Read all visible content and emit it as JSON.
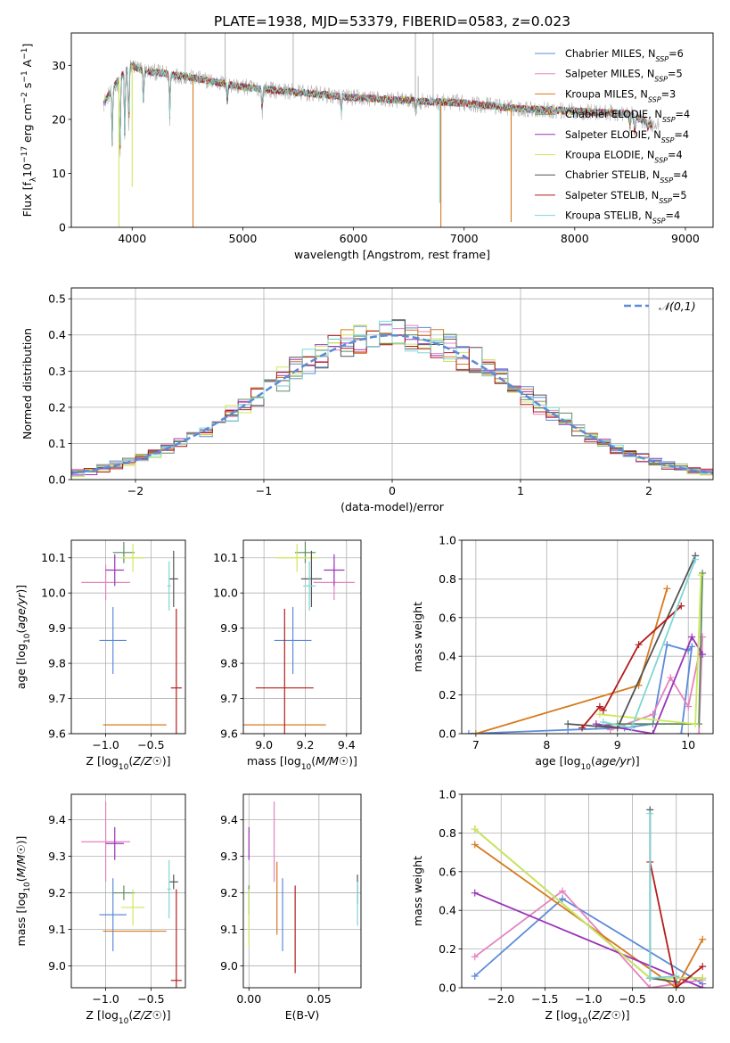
{
  "title": "PLATE=1938, MJD=53379, FIBERID=0583, z=0.023",
  "colors": {
    "Chabrier MILES": "#5b8bd9",
    "Salpeter MILES": "#e583c0",
    "Kroupa MILES": "#d67a1e",
    "Chabrier ELODIE": "#5e8a5e",
    "Salpeter ELODIE": "#9a34b8",
    "Kroupa ELODIE": "#cde85a",
    "Chabrier STELIB": "#555555",
    "Salpeter STELIB": "#b51c1c",
    "Kroupa STELIB": "#7fd6d6",
    "data": "#b3b3b3",
    "normal": "#5b8bd9"
  },
  "legend": [
    {
      "prefix": "Chabrier MILES, N",
      "sub": "SSP",
      "suffix": "=6",
      "key": "Chabrier MILES"
    },
    {
      "prefix": "Salpeter MILES, N",
      "sub": "SSP",
      "suffix": "=5",
      "key": "Salpeter MILES"
    },
    {
      "prefix": "Kroupa MILES, N",
      "sub": "SSP",
      "suffix": "=3",
      "key": "Kroupa MILES"
    },
    {
      "prefix": "Chabrier ELODIE, N",
      "sub": "SSP",
      "suffix": "=4",
      "key": "Chabrier ELODIE"
    },
    {
      "prefix": "Salpeter ELODIE, N",
      "sub": "SSP",
      "suffix": "=4",
      "key": "Salpeter ELODIE"
    },
    {
      "prefix": "Kroupa ELODIE, N",
      "sub": "SSP",
      "suffix": "=4",
      "key": "Kroupa ELODIE"
    },
    {
      "prefix": "Chabrier STELIB, N",
      "sub": "SSP",
      "suffix": "=4",
      "key": "Chabrier STELIB"
    },
    {
      "prefix": "Salpeter STELIB, N",
      "sub": "SSP",
      "suffix": "=5",
      "key": "Salpeter STELIB"
    },
    {
      "prefix": "Kroupa STELIB, N",
      "sub": "SSP",
      "suffix": "=4",
      "key": "Kroupa STELIB"
    }
  ],
  "chart_data": [
    {
      "type": "line",
      "title": "PLATE=1938, MJD=53379, FIBERID=0583, z=0.023",
      "xlabel": "wavelength [Angstrom, rest frame]",
      "ylabel": "Flux [f_λ 10^-17 erg cm^-2 s^-1 A^-1]",
      "xlim": [
        3450,
        9250
      ],
      "ylim": [
        0,
        36
      ],
      "xticks": [
        4000,
        5000,
        6000,
        7000,
        8000,
        9000
      ],
      "yticks": [
        0,
        10,
        20,
        30
      ],
      "continuum": {
        "x": [
          3740,
          3900,
          4000,
          4100,
          4300,
          4600,
          5000,
          5500,
          6000,
          6500,
          7000,
          7500,
          8000,
          8500,
          8700
        ],
        "y": [
          23,
          28,
          30,
          29,
          28.5,
          27.5,
          26,
          25,
          24,
          23.5,
          23,
          22,
          21.5,
          21,
          19
        ]
      },
      "absorption_lines": [
        {
          "x": 3820,
          "y": 14
        },
        {
          "x": 3890,
          "y": 12
        },
        {
          "x": 3934,
          "y": 15
        },
        {
          "x": 3969,
          "y": 17
        },
        {
          "x": 4102,
          "y": 22
        },
        {
          "x": 4340,
          "y": 20
        },
        {
          "x": 4861,
          "y": 23
        },
        {
          "x": 5175,
          "y": 21
        },
        {
          "x": 5890,
          "y": 21
        },
        {
          "x": 6563,
          "y": 21
        },
        {
          "x": 8498,
          "y": 18
        },
        {
          "x": 8542,
          "y": 17
        },
        {
          "x": 8662,
          "y": 18
        }
      ],
      "spikes": [
        {
          "x": 3880,
          "y": 0,
          "series": "Kroupa ELODIE"
        },
        {
          "x": 4550,
          "y": 0,
          "series": "Kroupa MILES"
        },
        {
          "x": 6790,
          "y": 0,
          "series": "Kroupa MILES"
        },
        {
          "x": 7425,
          "y": 1,
          "series": "Kroupa MILES"
        },
        {
          "x": 6780,
          "y": 4.5,
          "series": "Kroupa STELIB"
        },
        {
          "x": 4000,
          "y": 7.5,
          "series": "Kroupa ELODIE"
        }
      ],
      "emission_lines": [
        {
          "x": 4480,
          "y": 36
        },
        {
          "x": 4840,
          "y": 36
        },
        {
          "x": 5455,
          "y": 36
        },
        {
          "x": 6560,
          "y": 36
        },
        {
          "x": 6585,
          "y": 28
        },
        {
          "x": 6720,
          "y": 36
        }
      ]
    },
    {
      "type": "area",
      "xlabel": "(data-model)/error",
      "ylabel": "Normed distribution",
      "xlim": [
        -2.5,
        2.5
      ],
      "ylim": [
        0,
        0.53
      ],
      "xticks": [
        -2,
        -1,
        0,
        1,
        2
      ],
      "yticks": [
        0.0,
        0.1,
        0.2,
        0.3,
        0.4,
        0.5
      ],
      "legend_location": "upper right",
      "gaussian": {
        "name": "𝒩(0,1)",
        "mu": 0,
        "sigma": 1
      },
      "bin_width": 0.1
    },
    {
      "type": "scatter",
      "xlabel": "Z [log10(Z/Z☉)]",
      "ylabel": "age  [log10(age/yr)]",
      "xlim": [
        -1.38,
        -0.12
      ],
      "ylim": [
        9.6,
        10.15
      ],
      "xticks": [
        -1.0,
        -0.5
      ],
      "yticks": [
        9.6,
        9.7,
        9.8,
        9.9,
        10.0,
        10.1
      ],
      "points": [
        {
          "series": "Chabrier MILES",
          "x": -0.92,
          "y": 9.865,
          "xerr": 0.15,
          "yerr": 0.095
        },
        {
          "series": "Salpeter MILES",
          "x": -1.0,
          "y": 10.03,
          "xerr": 0.27,
          "yerr": 0.05
        },
        {
          "series": "Kroupa MILES",
          "x": -0.68,
          "y": 9.625,
          "xerr": 0.35,
          "yerr": 0.0
        },
        {
          "series": "Chabrier ELODIE",
          "x": -0.8,
          "y": 10.115,
          "xerr": 0.12,
          "yerr": 0.03
        },
        {
          "series": "Salpeter ELODIE",
          "x": -0.9,
          "y": 10.065,
          "xerr": 0.1,
          "yerr": 0.045
        },
        {
          "series": "Kroupa ELODIE",
          "x": -0.7,
          "y": 10.1,
          "xerr": 0.13,
          "yerr": 0.04
        },
        {
          "series": "Chabrier STELIB",
          "x": -0.25,
          "y": 10.04,
          "xerr": 0.05,
          "yerr": 0.08
        },
        {
          "series": "Salpeter STELIB",
          "x": -0.22,
          "y": 9.73,
          "xerr": 0.06,
          "yerr": 0.225
        },
        {
          "series": "Kroupa STELIB",
          "x": -0.3,
          "y": 10.02,
          "xerr": 0.02,
          "yerr": 0.07
        }
      ]
    },
    {
      "type": "scatter",
      "xlabel": "mass [log10(M/M☉)]",
      "ylabel": "",
      "xlim": [
        8.9,
        9.47
      ],
      "ylim": [
        9.6,
        10.15
      ],
      "xticks": [
        9.0,
        9.2,
        9.4
      ],
      "yticks": [
        9.6,
        9.7,
        9.8,
        9.9,
        10.0,
        10.1
      ],
      "points": [
        {
          "series": "Chabrier MILES",
          "x": 9.14,
          "y": 9.865,
          "xerr": 0.09,
          "yerr": 0.095
        },
        {
          "series": "Salpeter MILES",
          "x": 9.34,
          "y": 10.03,
          "xerr": 0.1,
          "yerr": 0.05
        },
        {
          "series": "Kroupa MILES",
          "x": 9.1,
          "y": 9.625,
          "xerr": 0.2,
          "yerr": 0.0
        },
        {
          "series": "Chabrier ELODIE",
          "x": 9.2,
          "y": 10.115,
          "xerr": 0.05,
          "yerr": 0.03
        },
        {
          "series": "Salpeter ELODIE",
          "x": 9.34,
          "y": 10.065,
          "xerr": 0.05,
          "yerr": 0.045
        },
        {
          "series": "Kroupa ELODIE",
          "x": 9.16,
          "y": 10.1,
          "xerr": 0.1,
          "yerr": 0.04
        },
        {
          "series": "Chabrier STELIB",
          "x": 9.23,
          "y": 10.04,
          "xerr": 0.05,
          "yerr": 0.08
        },
        {
          "series": "Salpeter STELIB",
          "x": 9.1,
          "y": 9.73,
          "xerr": 0.14,
          "yerr": 0.225
        },
        {
          "series": "Kroupa STELIB",
          "x": 9.22,
          "y": 10.02,
          "xerr": 0.03,
          "yerr": 0.07
        }
      ]
    },
    {
      "type": "line",
      "xlabel": "age  [log10(age/yr)]",
      "ylabel": "mass weight",
      "xlim": [
        6.8,
        10.35
      ],
      "ylim": [
        0,
        1.0
      ],
      "xticks": [
        7,
        8,
        9,
        10
      ],
      "yticks": [
        0.0,
        0.2,
        0.4,
        0.6,
        0.8,
        1.0
      ],
      "series": [
        {
          "name": "Chabrier MILES",
          "x": [
            6.9,
            8.3,
            9.1,
            9.5,
            9.7,
            10.0,
            10.05,
            9.9
          ],
          "y": [
            0.0,
            0.02,
            0.03,
            0.05,
            0.46,
            0.43,
            0.45,
            0.0
          ]
        },
        {
          "name": "Salpeter MILES",
          "x": [
            8.9,
            9.5,
            9.75,
            10.0,
            10.2,
            10.15
          ],
          "y": [
            0.02,
            0.1,
            0.29,
            0.14,
            0.5,
            0.0
          ]
        },
        {
          "name": "Kroupa MILES",
          "x": [
            7.0,
            9.3,
            9.7
          ],
          "y": [
            0.0,
            0.25,
            0.75
          ]
        },
        {
          "name": "Chabrier ELODIE",
          "x": [
            8.7,
            9.0,
            10.15,
            10.2
          ],
          "y": [
            0.04,
            0.05,
            0.05,
            0.83
          ]
        },
        {
          "name": "Salpeter ELODIE",
          "x": [
            8.7,
            9.5,
            10.05,
            10.2
          ],
          "y": [
            0.05,
            0.0,
            0.5,
            0.41
          ]
        },
        {
          "name": "Kroupa ELODIE",
          "x": [
            8.75,
            10.1,
            10.18
          ],
          "y": [
            0.1,
            0.05,
            0.82
          ]
        },
        {
          "name": "Chabrier STELIB",
          "x": [
            8.3,
            9.0,
            10.1
          ],
          "y": [
            0.05,
            0.03,
            0.92
          ]
        },
        {
          "name": "Salpeter STELIB",
          "x": [
            8.5,
            8.75,
            8.8,
            9.3,
            9.9
          ],
          "y": [
            0.03,
            0.14,
            0.12,
            0.46,
            0.66
          ]
        },
        {
          "name": "Kroupa STELIB",
          "x": [
            8.8,
            9.2,
            10.1
          ],
          "y": [
            0.06,
            0.03,
            0.9
          ]
        }
      ]
    },
    {
      "type": "scatter",
      "xlabel": "Z [log10(Z/Z☉)]",
      "ylabel": "mass [log10(M/M☉)]",
      "xlim": [
        -1.38,
        -0.12
      ],
      "ylim": [
        8.94,
        9.47
      ],
      "xticks": [
        -1.0,
        -0.5
      ],
      "yticks": [
        9.0,
        9.1,
        9.2,
        9.3,
        9.4
      ],
      "points": [
        {
          "series": "Chabrier MILES",
          "x": -0.92,
          "y": 9.14,
          "xerr": 0.15,
          "yerr": 0.1
        },
        {
          "series": "Salpeter MILES",
          "x": -1.0,
          "y": 9.34,
          "xerr": 0.27,
          "yerr": 0.11
        },
        {
          "series": "Kroupa MILES",
          "x": -0.68,
          "y": 9.095,
          "xerr": 0.35,
          "yerr": 0.0
        },
        {
          "series": "Chabrier ELODIE",
          "x": -0.8,
          "y": 9.2,
          "xerr": 0.12,
          "yerr": 0.02
        },
        {
          "series": "Salpeter ELODIE",
          "x": -0.9,
          "y": 9.335,
          "xerr": 0.1,
          "yerr": 0.045
        },
        {
          "series": "Kroupa ELODIE",
          "x": -0.7,
          "y": 9.16,
          "xerr": 0.13,
          "yerr": 0.05
        },
        {
          "series": "Chabrier STELIB",
          "x": -0.25,
          "y": 9.23,
          "xerr": 0.05,
          "yerr": 0.02
        },
        {
          "series": "Salpeter STELIB",
          "x": -0.22,
          "y": 8.96,
          "xerr": 0.06,
          "yerr": 0.25
        },
        {
          "series": "Kroupa STELIB",
          "x": -0.3,
          "y": 9.21,
          "xerr": 0.02,
          "yerr": 0.08
        }
      ]
    },
    {
      "type": "scatter",
      "xlabel": "E(B-V)",
      "ylabel": "",
      "xlim": [
        -0.004,
        0.08
      ],
      "ylim": [
        8.94,
        9.47
      ],
      "xticks": [
        0.0,
        0.05
      ],
      "yticks": [
        9.0,
        9.1,
        9.2,
        9.3,
        9.4
      ],
      "points": [
        {
          "series": "Chabrier MILES",
          "x": 0.024,
          "y": 9.14,
          "yerr": 0.1
        },
        {
          "series": "Salpeter MILES",
          "x": 0.018,
          "y": 9.34,
          "yerr": 0.11
        },
        {
          "series": "Kroupa MILES",
          "x": 0.02,
          "y": 9.185,
          "yerr": 0.1
        },
        {
          "series": "Chabrier ELODIE",
          "x": 0.0,
          "y": 9.18,
          "yerr": 0.04
        },
        {
          "series": "Salpeter ELODIE",
          "x": 0.0,
          "y": 9.335,
          "yerr": 0.045
        },
        {
          "series": "Kroupa ELODIE",
          "x": 0.0,
          "y": 9.13,
          "yerr": 0.08
        },
        {
          "series": "Chabrier STELIB",
          "x": 0.0775,
          "y": 9.21,
          "yerr": 0.04
        },
        {
          "series": "Salpeter STELIB",
          "x": 0.033,
          "y": 9.1,
          "yerr": 0.12
        },
        {
          "series": "Kroupa STELIB",
          "x": 0.0775,
          "y": 9.17,
          "yerr": 0.06
        }
      ]
    },
    {
      "type": "line",
      "xlabel": "Z [log10(Z/Z☉)]",
      "ylabel": "mass weight",
      "xlim": [
        -2.45,
        0.42
      ],
      "ylim": [
        0,
        1.0
      ],
      "xticks": [
        -2.0,
        -1.5,
        -1.0,
        -0.5,
        0.0
      ],
      "yticks": [
        0.0,
        0.2,
        0.4,
        0.6,
        0.8,
        1.0
      ],
      "series": [
        {
          "name": "Chabrier MILES",
          "x": [
            -2.3,
            -1.3,
            0.3
          ],
          "y": [
            0.06,
            0.46,
            0.02
          ]
        },
        {
          "name": "Salpeter MILES",
          "x": [
            -2.3,
            -1.3,
            -0.3,
            0.3
          ],
          "y": [
            0.16,
            0.5,
            0.0,
            0.04
          ]
        },
        {
          "name": "Kroupa MILES",
          "x": [
            -2.3,
            0.0,
            0.3
          ],
          "y": [
            0.74,
            0.0,
            0.25
          ]
        },
        {
          "name": "Chabrier ELODIE",
          "x": [
            -2.3,
            -0.3,
            0.3
          ],
          "y": [
            0.82,
            0.05,
            0.05
          ]
        },
        {
          "name": "Salpeter ELODIE",
          "x": [
            -2.3,
            0.3
          ],
          "y": [
            0.49,
            0.0
          ]
        },
        {
          "name": "Kroupa ELODIE",
          "x": [
            -2.3,
            -0.3,
            0.3
          ],
          "y": [
            0.82,
            0.05,
            0.05
          ]
        },
        {
          "name": "Chabrier STELIB",
          "x": [
            -0.3,
            -0.3,
            0.0
          ],
          "y": [
            0.92,
            0.05,
            0.03
          ]
        },
        {
          "name": "Salpeter STELIB",
          "x": [
            -0.3,
            0.0,
            0.3
          ],
          "y": [
            0.65,
            0.0,
            0.11
          ]
        },
        {
          "name": "Kroupa STELIB",
          "x": [
            -0.3,
            -0.3,
            0.0
          ],
          "y": [
            0.9,
            0.05,
            0.06
          ]
        }
      ]
    }
  ]
}
